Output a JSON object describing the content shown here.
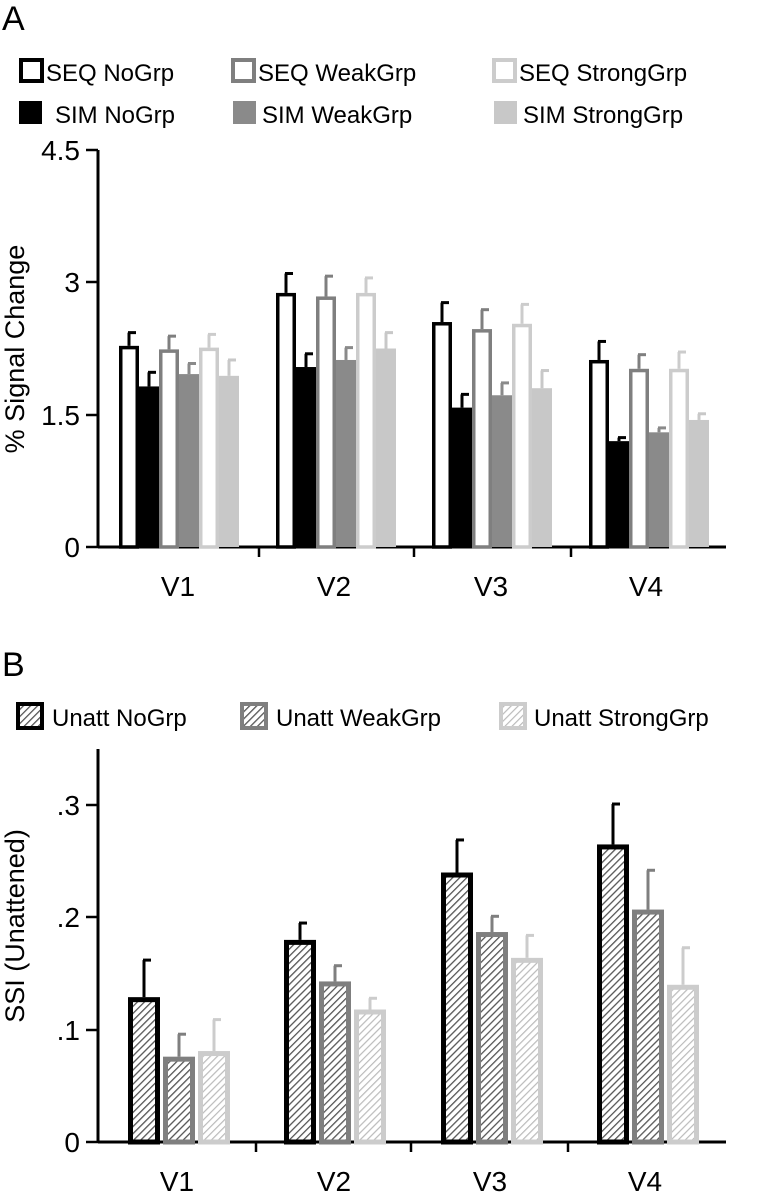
{
  "colors": {
    "black": "#000000",
    "dark_gray": "#7f7f7f",
    "mid_gray": "#8a8a8a",
    "light_gray": "#c8c8c8",
    "light_edge": "#cccccc",
    "white": "#ffffff"
  },
  "chart_data": [
    {
      "panel": "A",
      "type": "bar",
      "title": "",
      "xlabel": "",
      "ylabel": "% Signal Change",
      "ylim": [
        0,
        4.5
      ],
      "yticks": [
        "0",
        "1.5",
        "3",
        "4.5"
      ],
      "categories": [
        "V1",
        "V2",
        "V3",
        "V4"
      ],
      "legend_position": "top",
      "series": [
        {
          "name": "SEQ NoGrp",
          "style": "outline-black",
          "values": [
            2.28,
            2.88,
            2.55,
            2.12
          ],
          "errors": [
            0.15,
            0.22,
            0.22,
            0.21
          ]
        },
        {
          "name": "SIM NoGrp",
          "style": "solid-black",
          "values": [
            1.82,
            2.04,
            1.58,
            1.2
          ],
          "errors": [
            0.16,
            0.15,
            0.15,
            0.04
          ]
        },
        {
          "name": "SEQ WeakGrp",
          "style": "outline-darkgray",
          "values": [
            2.24,
            2.84,
            2.47,
            2.02
          ],
          "errors": [
            0.15,
            0.23,
            0.22,
            0.16
          ]
        },
        {
          "name": "SIM WeakGrp",
          "style": "solid-darkgray",
          "values": [
            1.96,
            2.12,
            1.72,
            1.3
          ],
          "errors": [
            0.12,
            0.14,
            0.14,
            0.05
          ]
        },
        {
          "name": "SEQ StrongGrp",
          "style": "outline-lightgray",
          "values": [
            2.26,
            2.88,
            2.53,
            2.02
          ],
          "errors": [
            0.15,
            0.17,
            0.22,
            0.19
          ]
        },
        {
          "name": "SIM StrongGrp",
          "style": "solid-lightgray",
          "values": [
            1.94,
            2.25,
            1.8,
            1.44
          ],
          "errors": [
            0.18,
            0.18,
            0.2,
            0.07
          ]
        }
      ],
      "legend_rows": [
        [
          "SEQ NoGrp",
          "SEQ WeakGrp",
          "SEQ StrongGrp"
        ],
        [
          "SIM NoGrp",
          "SIM WeakGrp",
          "SIM StrongGrp"
        ]
      ]
    },
    {
      "panel": "B",
      "type": "bar",
      "title": "",
      "xlabel": "",
      "ylabel": "SSI (Unattened)",
      "ylim": [
        0,
        0.35
      ],
      "yticks": [
        "0",
        ".1",
        ".2",
        ".3"
      ],
      "categories": [
        "V1",
        "V2",
        "V3",
        "V4"
      ],
      "legend_position": "top",
      "series": [
        {
          "name": "Unatt NoGrp",
          "style": "hatched-black",
          "values": [
            0.129,
            0.18,
            0.24,
            0.265
          ],
          "errors": [
            0.033,
            0.015,
            0.029,
            0.036
          ]
        },
        {
          "name": "Unatt WeakGrp",
          "style": "hatched-darkgray",
          "values": [
            0.076,
            0.143,
            0.187,
            0.207
          ],
          "errors": [
            0.02,
            0.014,
            0.014,
            0.035
          ]
        },
        {
          "name": "Unatt StrongGrp",
          "style": "hatched-lightgray",
          "values": [
            0.081,
            0.118,
            0.164,
            0.14
          ],
          "errors": [
            0.028,
            0.01,
            0.02,
            0.033
          ]
        }
      ],
      "legend_rows": [
        [
          "Unatt NoGrp",
          "Unatt WeakGrp",
          "Unatt StrongGrp"
        ]
      ]
    }
  ]
}
